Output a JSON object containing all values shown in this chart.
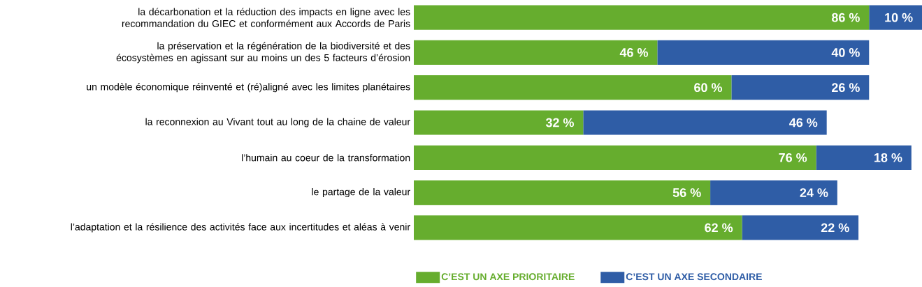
{
  "chart_data": {
    "type": "bar",
    "orientation": "horizontal",
    "stacked": true,
    "legend": "bottom",
    "categories": [
      "la décarbonation et la réduction des impacts en ligne avec les recommandation du GIEC et conformément aux Accords de Paris",
      "la préservation et la régénération de la biodiversité et des écosystèmes en agissant sur au moins un des 5 facteurs d’érosion",
      "un modèle économique réinventé et (ré)aligné avec les limites planétaires",
      "la reconnexion au Vivant tout au long de la chaine de valeur",
      "l’humain au coeur de la transformation",
      "le partage de la valeur",
      "l’adaptation et la résilience des activités face aux incertitudes et aléas à venir"
    ],
    "series": [
      {
        "name": "C’EST UN AXE PRIORITAIRE",
        "color": "#66ad2e",
        "values": [
          86,
          46,
          60,
          32,
          76,
          56,
          62
        ],
        "value_labels": [
          "86 %",
          "46 %",
          "60 %",
          "32 %",
          "76 %",
          "56 %",
          "62 %"
        ]
      },
      {
        "name": "C’EST UN AXE SECONDAIRE",
        "color": "#2f5da6",
        "values": [
          10,
          40,
          26,
          46,
          18,
          24,
          22
        ],
        "value_labels": [
          "10 %",
          "40 %",
          "26 %",
          "46 %",
          "18 %",
          "24 %",
          "22 %"
        ]
      }
    ]
  }
}
